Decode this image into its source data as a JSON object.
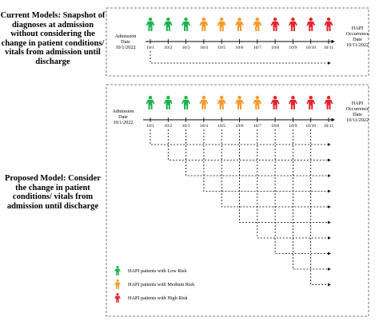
{
  "colors": {
    "low": "#1db14b",
    "medium": "#f39a2b",
    "high": "#e3232a",
    "line": "#000000",
    "frame": "#555555"
  },
  "icons": {
    "low": "person-icon-green",
    "medium": "person-icon-orange",
    "high": "person-icon-red"
  },
  "dates": [
    "10/1",
    "10/2",
    "10/3",
    "10/4",
    "10/5",
    "10/6",
    "10/7",
    "10/8",
    "10/9",
    "10/10",
    "10/11"
  ],
  "risks": [
    "low",
    "low",
    "low",
    "medium",
    "medium",
    "medium",
    "medium",
    "high",
    "high",
    "high",
    "high"
  ],
  "current": {
    "label": "Current Models: Snapshot of diagnoses at admission without considering the change in patient conditions/ vitals from admission until discharge",
    "admission_lines": [
      "Admission",
      "Date",
      "10/1/2022"
    ],
    "hapi_lines": [
      "HAPI",
      "Occurrence",
      "Date",
      "10/11/2022"
    ]
  },
  "proposed": {
    "label": "Proposed Model: Consider the change in patient conditions/ vitals from admission until discharge",
    "admission_lines": [
      "Admission",
      "Date",
      "10/1/2022"
    ],
    "hapi_lines": [
      "HAPI",
      "Occurrence",
      "Date",
      "10/11/2022"
    ]
  },
  "legend": [
    {
      "risk": "low",
      "label": "HAPI patients with Low Risk"
    },
    {
      "risk": "medium",
      "label": "HAPI patients with Medium Risk"
    },
    {
      "risk": "high",
      "label": "HAPI patients with High Risk"
    }
  ]
}
